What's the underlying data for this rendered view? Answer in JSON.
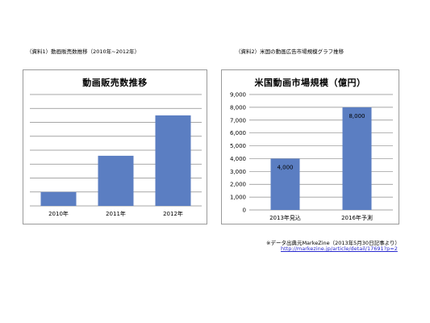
{
  "captions": {
    "left": "（資料1）動画販売数推移（2010年~2012年）",
    "right": "（資料2）米国の動画広告市場規模グラフ推移"
  },
  "source": {
    "note": "※データ出典元MarkeZine（2013年5月30日記事より）",
    "url": "http://markezine.jp/article/detail/17691?p=2"
  },
  "colors": {
    "bar": "#5b7ec2",
    "grid": "#8a8a8a",
    "frame": "#9a9a9a"
  },
  "chart_data": [
    {
      "type": "bar",
      "title": "動画販売数推移",
      "categories": [
        "2010年",
        "2011年",
        "2012年"
      ],
      "values": [
        1.0,
        3.6,
        6.5
      ],
      "ylim": [
        0,
        8
      ],
      "grid": true,
      "show_y_axis_labels": false
    },
    {
      "type": "bar",
      "title": "米国動画市場規模（億円）",
      "categories": [
        "2013年見込",
        "2016年予測"
      ],
      "values": [
        4000,
        8000
      ],
      "data_labels": [
        "4,000",
        "8,000"
      ],
      "yticks": [
        "0",
        "1,000",
        "2,000",
        "3,000",
        "4,000",
        "5,000",
        "6,000",
        "7,000",
        "8,000",
        "9,000"
      ],
      "ylim": [
        0,
        9000
      ],
      "grid": true
    }
  ]
}
